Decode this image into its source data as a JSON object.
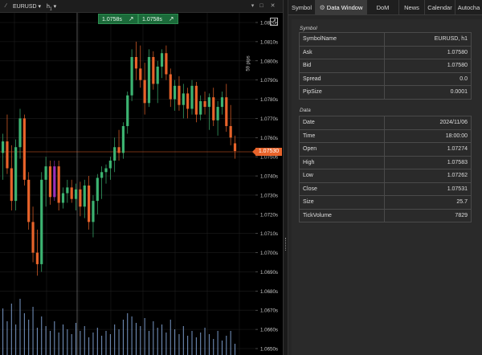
{
  "chart": {
    "symbol": "EURUSD",
    "timeframe": "h",
    "timeframe_sub": "1",
    "sell_price": "1.0758s",
    "buy_price": "1.0758s",
    "pips_label": "59 pips",
    "current_price": "1.07530",
    "y_ticks": [
      "1.0820s",
      "1.0810s",
      "1.0800s",
      "1.0790s",
      "1.0780s",
      "1.0770s",
      "1.0760s",
      "1.0750s",
      "1.0740s",
      "1.0730s",
      "1.0720s",
      "1.0710s",
      "1.0700s",
      "1.0690s",
      "1.0680s",
      "1.0670s",
      "1.0660s",
      "1.0650s"
    ],
    "colors": {
      "bull": "#3cb371",
      "bear": "#e8632a",
      "neutral": "#9b30b8",
      "volume": "#8fb4ea",
      "grid": "#1e1e1e",
      "accent": "#1b6b3a"
    }
  },
  "tabs": [
    {
      "label": "Symbol"
    },
    {
      "label": "Data Window"
    },
    {
      "label": "DoM"
    },
    {
      "label": "News"
    },
    {
      "label": "Calendar"
    },
    {
      "label": "Autocha"
    }
  ],
  "data_window": {
    "symbol_section_title": "Symbol",
    "data_section_title": "Data",
    "symbol_rows": [
      {
        "key": "SymbolName",
        "value": "EURUSD, h1"
      },
      {
        "key": "Ask",
        "value": "1.07580"
      },
      {
        "key": "Bid",
        "value": "1.07580"
      },
      {
        "key": "Spread",
        "value": "0.0"
      },
      {
        "key": "PipSize",
        "value": "0.0001"
      }
    ],
    "data_rows": [
      {
        "key": "Date",
        "value": "2024/11/06"
      },
      {
        "key": "Time",
        "value": "18:00:00"
      },
      {
        "key": "Open",
        "value": "1.07274"
      },
      {
        "key": "High",
        "value": "1.07583"
      },
      {
        "key": "Low",
        "value": "1.07262"
      },
      {
        "key": "Close",
        "value": "1.07531"
      },
      {
        "key": "Size",
        "value": "25.7"
      },
      {
        "key": "TickVolume",
        "value": "7829"
      }
    ]
  },
  "candles": [
    {
      "o": 1.0752,
      "h": 1.0762,
      "l": 1.0738,
      "c": 1.0758
    },
    {
      "o": 1.0758,
      "h": 1.0772,
      "l": 1.0741,
      "c": 1.0744
    },
    {
      "o": 1.0744,
      "h": 1.0756,
      "l": 1.0722,
      "c": 1.0727
    },
    {
      "o": 1.0727,
      "h": 1.0759,
      "l": 1.0722,
      "c": 1.0755
    },
    {
      "o": 1.0755,
      "h": 1.0775,
      "l": 1.0749,
      "c": 1.077
    },
    {
      "o": 1.077,
      "h": 1.0772,
      "l": 1.0735,
      "c": 1.0738
    },
    {
      "o": 1.0738,
      "h": 1.0742,
      "l": 1.0712,
      "c": 1.0716
    },
    {
      "o": 1.0716,
      "h": 1.0724,
      "l": 1.0695,
      "c": 1.07
    },
    {
      "o": 1.07,
      "h": 1.0712,
      "l": 1.0688,
      "c": 1.0694
    },
    {
      "o": 1.0694,
      "h": 1.0742,
      "l": 1.069,
      "c": 1.0738
    },
    {
      "o": 1.0738,
      "h": 1.075,
      "l": 1.0724,
      "c": 1.0745
    },
    {
      "o": 1.0745,
      "h": 1.0748,
      "l": 1.0725,
      "c": 1.0729
    },
    {
      "o": 1.0729,
      "h": 1.0748,
      "l": 1.0727,
      "c": 1.0745
    },
    {
      "o": 1.0745,
      "h": 1.0748,
      "l": 1.0722,
      "c": 1.0726
    },
    {
      "o": 1.0726,
      "h": 1.0734,
      "l": 1.0723,
      "c": 1.0731
    },
    {
      "o": 1.0731,
      "h": 1.0738,
      "l": 1.0726,
      "c": 1.0734
    },
    {
      "o": 1.0734,
      "h": 1.0738,
      "l": 1.0726,
      "c": 1.0728
    },
    {
      "o": 1.0728,
      "h": 1.0736,
      "l": 1.0722,
      "c": 1.0733
    },
    {
      "o": 1.0733,
      "h": 1.0737,
      "l": 1.0719,
      "c": 1.0724
    },
    {
      "o": 1.0724,
      "h": 1.0738,
      "l": 1.0718,
      "c": 1.0735
    },
    {
      "o": 1.0735,
      "h": 1.074,
      "l": 1.0712,
      "c": 1.0716
    },
    {
      "o": 1.0716,
      "h": 1.073,
      "l": 1.0708,
      "c": 1.0727
    },
    {
      "o": 1.0727,
      "h": 1.0741,
      "l": 1.072,
      "c": 1.0739
    },
    {
      "o": 1.0739,
      "h": 1.0745,
      "l": 1.0728,
      "c": 1.0742
    },
    {
      "o": 1.0742,
      "h": 1.0746,
      "l": 1.0736,
      "c": 1.0744
    },
    {
      "o": 1.0744,
      "h": 1.075,
      "l": 1.0738,
      "c": 1.0748
    },
    {
      "o": 1.0748,
      "h": 1.076,
      "l": 1.0742,
      "c": 1.0755
    },
    {
      "o": 1.0755,
      "h": 1.0764,
      "l": 1.0748,
      "c": 1.0752
    },
    {
      "o": 1.0752,
      "h": 1.0768,
      "l": 1.0749,
      "c": 1.0766
    },
    {
      "o": 1.0766,
      "h": 1.0784,
      "l": 1.0762,
      "c": 1.0782
    },
    {
      "o": 1.0782,
      "h": 1.0806,
      "l": 1.0779,
      "c": 1.0802
    },
    {
      "o": 1.0802,
      "h": 1.081,
      "l": 1.079,
      "c": 1.0796
    },
    {
      "o": 1.0796,
      "h": 1.0808,
      "l": 1.0786,
      "c": 1.079
    },
    {
      "o": 1.079,
      "h": 1.0799,
      "l": 1.0772,
      "c": 1.0778
    },
    {
      "o": 1.0778,
      "h": 1.0806,
      "l": 1.0776,
      "c": 1.0802
    },
    {
      "o": 1.0802,
      "h": 1.0805,
      "l": 1.0785,
      "c": 1.0788
    },
    {
      "o": 1.0788,
      "h": 1.08,
      "l": 1.0778,
      "c": 1.0797
    },
    {
      "o": 1.0797,
      "h": 1.0806,
      "l": 1.0791,
      "c": 1.0804
    },
    {
      "o": 1.0804,
      "h": 1.0808,
      "l": 1.079,
      "c": 1.0793
    },
    {
      "o": 1.0793,
      "h": 1.0796,
      "l": 1.0776,
      "c": 1.078
    },
    {
      "o": 1.078,
      "h": 1.079,
      "l": 1.0774,
      "c": 1.0787
    },
    {
      "o": 1.0787,
      "h": 1.0792,
      "l": 1.0774,
      "c": 1.0777
    },
    {
      "o": 1.0777,
      "h": 1.0788,
      "l": 1.077,
      "c": 1.0783
    },
    {
      "o": 1.0783,
      "h": 1.0786,
      "l": 1.077,
      "c": 1.0775
    },
    {
      "o": 1.0775,
      "h": 1.079,
      "l": 1.0772,
      "c": 1.0787
    },
    {
      "o": 1.0787,
      "h": 1.0789,
      "l": 1.0768,
      "c": 1.0772
    },
    {
      "o": 1.0772,
      "h": 1.0782,
      "l": 1.0769,
      "c": 1.0779
    },
    {
      "o": 1.0779,
      "h": 1.0784,
      "l": 1.0772,
      "c": 1.0776
    },
    {
      "o": 1.0776,
      "h": 1.0783,
      "l": 1.0764,
      "c": 1.0781
    },
    {
      "o": 1.0781,
      "h": 1.0786,
      "l": 1.0766,
      "c": 1.0769
    },
    {
      "o": 1.0769,
      "h": 1.0779,
      "l": 1.0761,
      "c": 1.0776
    },
    {
      "o": 1.0776,
      "h": 1.0784,
      "l": 1.0772,
      "c": 1.0781
    },
    {
      "o": 1.0781,
      "h": 1.0788,
      "l": 1.0763,
      "c": 1.0766
    },
    {
      "o": 1.0766,
      "h": 1.0777,
      "l": 1.0756,
      "c": 1.076
    },
    {
      "o": 1.0757,
      "h": 1.0761,
      "l": 1.0749,
      "c": 1.0753
    }
  ],
  "volumes": [
    58,
    42,
    64,
    38,
    70,
    52,
    44,
    60,
    34,
    48,
    36,
    30,
    42,
    28,
    38,
    32,
    26,
    40,
    30,
    36,
    22,
    28,
    34,
    24,
    30,
    26,
    38,
    32,
    44,
    52,
    48,
    40,
    36,
    46,
    30,
    42,
    34,
    38,
    28,
    44,
    32,
    26,
    36,
    24,
    30,
    22,
    28,
    34,
    26,
    20,
    30,
    18,
    24,
    30,
    14
  ]
}
